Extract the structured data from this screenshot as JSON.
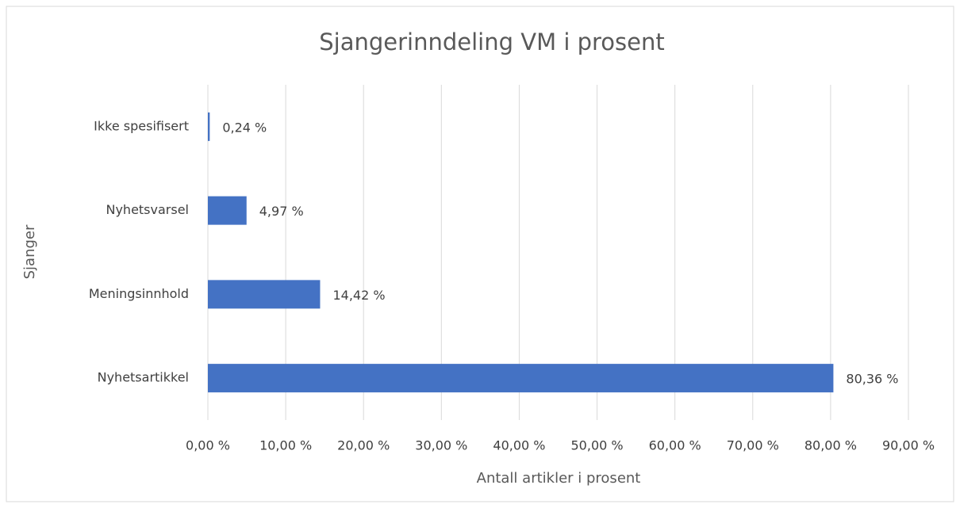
{
  "chart_data": {
    "type": "barh",
    "title": "Sjangerinndeling VM i prosent",
    "xlabel": "Antall artikler i prosent",
    "ylabel": "Sjanger",
    "categories": [
      "Ikke spesifisert",
      "Nyhetsvarsel",
      "Meningsinnhold",
      "Nyhetsartikkel"
    ],
    "values": [
      0.24,
      4.97,
      14.42,
      80.36
    ],
    "value_labels": [
      "0,24 %",
      "4,97 %",
      "14,42 %",
      "80,36 %"
    ],
    "color": "#4472c4",
    "xlim": [
      0,
      90
    ],
    "xticks": [
      {
        "value": 0,
        "label": "0,00 %"
      },
      {
        "value": 10,
        "label": "10,00 %"
      },
      {
        "value": 20,
        "label": "20,00 %"
      },
      {
        "value": 30,
        "label": "30,00 %"
      },
      {
        "value": 40,
        "label": "40,00 %"
      },
      {
        "value": 50,
        "label": "50,00 %"
      },
      {
        "value": 60,
        "label": "60,00 %"
      },
      {
        "value": 70,
        "label": "70,00 %"
      },
      {
        "value": 80,
        "label": "80,00 %"
      },
      {
        "value": 90,
        "label": "90,00 %"
      }
    ],
    "grid": true
  }
}
